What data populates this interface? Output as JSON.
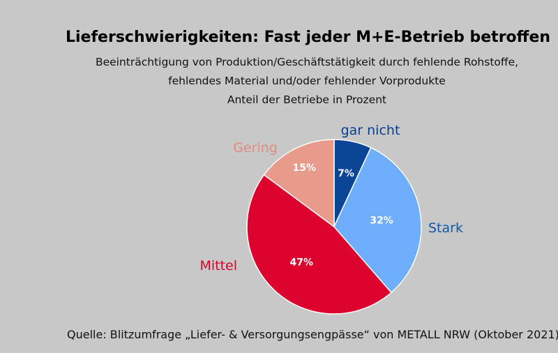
{
  "header": {
    "title": "Lieferschwierigkeiten: Fast jeder M+E-Betrieb betroffen",
    "subtitle_lines": [
      "Beeinträchtigung von Produktion/Geschäftstätigkeit durch fehlende Rohstoffe,",
      "fehlendes Material und/oder fehlender Vorprodukte",
      "Anteil der Betriebe in Prozent"
    ]
  },
  "footer": {
    "source": "Quelle: Blitzumfrage „Liefer- & Versorgungsengpässe“ von METALL NRW (Oktober 2021)"
  },
  "chart_data": {
    "type": "pie",
    "title": "Lieferschwierigkeiten: Fast jeder M+E-Betrieb betroffen",
    "unit": "%",
    "start": "12 o'clock, clockwise",
    "slices": [
      {
        "label": "gar nicht",
        "value": 7,
        "value_label": "7%",
        "color": "#0a4596",
        "label_color": "#0a3d8f"
      },
      {
        "label": "Stark",
        "value": 32,
        "value_label": "32%",
        "color": "#6eaefc",
        "label_color": "#0d5aa8"
      },
      {
        "label": "Mittel",
        "value": 47,
        "value_label": "47%",
        "color": "#dc042e",
        "label_color": "#d6002a"
      },
      {
        "label": "Gering",
        "value": 15,
        "value_label": "15%",
        "color": "#e99b8b",
        "label_color": "#e58b7d"
      }
    ]
  }
}
